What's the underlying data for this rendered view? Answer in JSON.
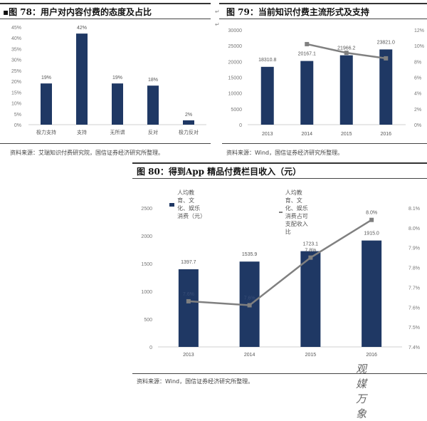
{
  "chart_data": [
    {
      "id": "fig78",
      "type": "bar",
      "title": "图 78：用户对内容付费的态度及占比",
      "categories": [
        "极力支持",
        "支持",
        "无所谓",
        "反对",
        "极力反对"
      ],
      "values": [
        19,
        42,
        19,
        18,
        2
      ],
      "value_labels": [
        "19%",
        "42%",
        "19%",
        "18%",
        "2%"
      ],
      "xlabel": "",
      "ylabel": "",
      "ylim": [
        0,
        45
      ],
      "yticks": [
        "0%",
        "5%",
        "10%",
        "15%",
        "20%",
        "25%",
        "30%",
        "35%",
        "40%",
        "45%"
      ],
      "grid": false,
      "source": "资料来源：艾瑞知识付费研究院，国信证券经济研究所整理。"
    },
    {
      "id": "fig79",
      "type": "bar+line",
      "title": "图 79：当前知识付费主流形式及支持",
      "categories": [
        "2013",
        "2014",
        "2015",
        "2016"
      ],
      "series": [
        {
          "name": "bars",
          "type": "bar",
          "axis": "left",
          "values": [
            18310.8,
            20167.1,
            21966.2,
            23821.0
          ],
          "labels": [
            "18310.8",
            "20167.1",
            "21966.2",
            "23821.0"
          ]
        },
        {
          "name": "line",
          "type": "line",
          "axis": "right",
          "values": [
            null,
            10.2,
            9.1,
            8.4
          ]
        }
      ],
      "ylim_left": [
        0,
        30000
      ],
      "yticks_left": [
        "0",
        "5000",
        "10000",
        "15000",
        "20000",
        "25000",
        "30000"
      ],
      "ylim_right": [
        0,
        12
      ],
      "yticks_right": [
        "0%",
        "2%",
        "4%",
        "6%",
        "8%",
        "10%",
        "12%"
      ],
      "grid": false,
      "source": "资料来源：Wind，国信证券经济研究所整理。"
    },
    {
      "id": "fig80",
      "type": "bar+line",
      "title": "图 80：得到App 精品付费栏目收入（元）",
      "categories": [
        "2013",
        "2014",
        "2015",
        "2016"
      ],
      "series": [
        {
          "name": "人均教育、文化、娱乐消费（元）",
          "type": "bar",
          "axis": "left",
          "values": [
            1397.7,
            1535.9,
            1723.1,
            1915.0
          ],
          "labels": [
            "1397.7",
            "1535.9",
            "1723.1",
            "1915.0"
          ]
        },
        {
          "name": "人均教育、文化、娱乐消费占可支配收入比",
          "type": "line",
          "axis": "right",
          "values": [
            7.63,
            7.61,
            7.85,
            8.04
          ],
          "labels": [
            "7.6%",
            "7.6%",
            "7.8%",
            "8.0%"
          ]
        }
      ],
      "legend_position": "top",
      "ylim_left": [
        0,
        2500
      ],
      "yticks_left": [
        "0",
        "500",
        "1000",
        "1500",
        "2000",
        "2500"
      ],
      "ylim_right": [
        7.4,
        8.1
      ],
      "yticks_right": [
        "7.4%",
        "7.5%",
        "7.6%",
        "7.7%",
        "7.8%",
        "7.9%",
        "8.0%",
        "8.1%"
      ],
      "grid": false,
      "source": "资料来源：Wind，国信证券经济研究所整理。"
    }
  ],
  "fig78": {
    "title": "▪图 78：用户对内容付费的态度及占比",
    "source": "资料来源：艾瑞知识付费研究院，国信证券经济研究所整理。"
  },
  "fig79": {
    "title": "图 79：当前知识付费主流形式及支持",
    "source": "资料来源：Wind，国信证券经济研究所整理。"
  },
  "fig80": {
    "title": "图 80：得到App 精品付费栏目收入（元）",
    "legend_bar": "人均教育、文化、娱乐消费（元）",
    "legend_line": "人均教育、文化、娱乐消费占可支配收入比",
    "source": "资料来源：Wind，国信证券经济研究所整理。"
  },
  "watermark": "观媒万象",
  "colors": {
    "bar": "#1F3864",
    "line": "#808080"
  }
}
